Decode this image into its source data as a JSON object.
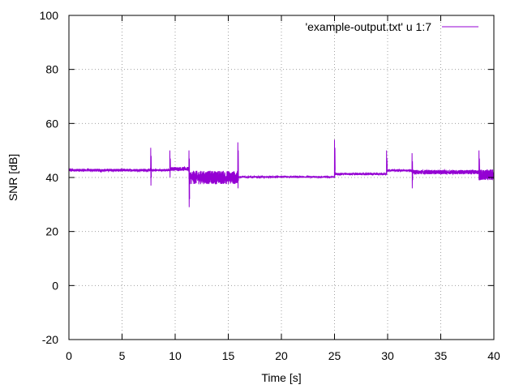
{
  "chart_data": {
    "type": "line",
    "xlabel": "Time [s]",
    "ylabel": "SNR [dB]",
    "xlim": [
      0,
      40
    ],
    "ylim": [
      -20,
      100
    ],
    "x_ticks": [
      0,
      5,
      10,
      15,
      20,
      25,
      30,
      35,
      40
    ],
    "y_ticks": [
      -20,
      0,
      20,
      40,
      60,
      80,
      100
    ],
    "grid": true,
    "legend_position": "top-right",
    "series": [
      {
        "name": "'example-output.txt' u 1:7",
        "color": "#9400d3",
        "segments": [
          {
            "x_start": 0.0,
            "x_end": 7.7,
            "level": 42.7,
            "noise": 0.5
          },
          {
            "x_start": 7.7,
            "x_end": 9.5,
            "level": 42.7,
            "noise": 0.4
          },
          {
            "x_start": 9.5,
            "x_end": 11.3,
            "level": 43.2,
            "noise": 0.7
          },
          {
            "x_start": 11.3,
            "x_end": 15.9,
            "level": 40.0,
            "noise": 2.5
          },
          {
            "x_start": 15.9,
            "x_end": 25.0,
            "level": 40.2,
            "noise": 0.3
          },
          {
            "x_start": 25.0,
            "x_end": 29.9,
            "level": 41.3,
            "noise": 0.4
          },
          {
            "x_start": 29.9,
            "x_end": 32.3,
            "level": 42.6,
            "noise": 0.4
          },
          {
            "x_start": 32.3,
            "x_end": 38.6,
            "level": 42.0,
            "noise": 0.8
          },
          {
            "x_start": 38.6,
            "x_end": 40.0,
            "level": 41.0,
            "noise": 2.0
          }
        ],
        "spikes": [
          {
            "x": 7.7,
            "max": 51,
            "min": 37
          },
          {
            "x": 9.5,
            "max": 50,
            "min": 40
          },
          {
            "x": 11.3,
            "max": 50,
            "min": 29
          },
          {
            "x": 15.9,
            "max": 53,
            "min": 36
          },
          {
            "x": 25.0,
            "max": 54,
            "min": 40
          },
          {
            "x": 29.9,
            "max": 50,
            "min": 41
          },
          {
            "x": 32.3,
            "max": 49,
            "min": 36
          },
          {
            "x": 38.6,
            "max": 50,
            "min": 39
          }
        ]
      }
    ]
  }
}
